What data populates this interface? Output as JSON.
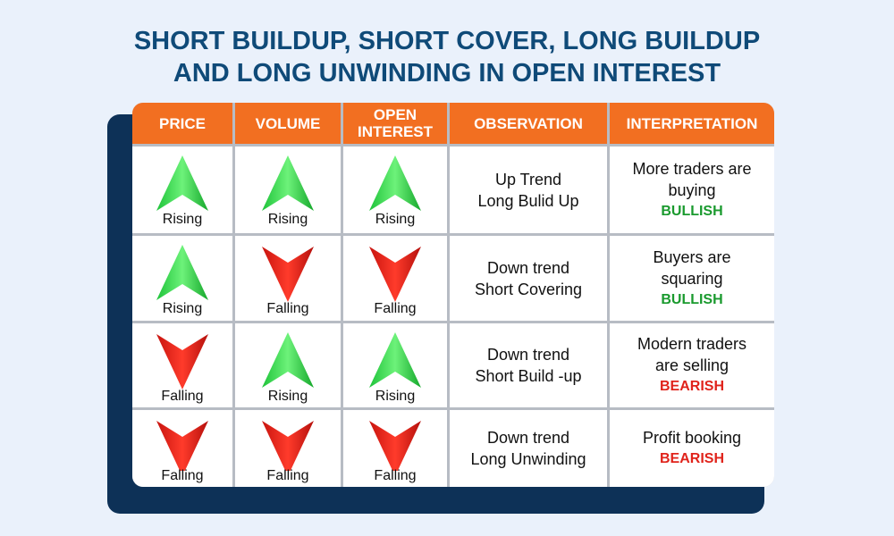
{
  "title": [
    "SHORT BUILDUP, SHORT COVER, LONG BUILDUP",
    "AND LONG UNWINDING IN OPEN INTEREST"
  ],
  "table": {
    "headers": [
      [
        "PRICE"
      ],
      [
        "VOLUME"
      ],
      [
        "OPEN",
        "INTEREST"
      ],
      [
        "OBSERVATION"
      ],
      [
        "INTERPRETATION"
      ]
    ],
    "rows": [
      {
        "price": "Rising",
        "volume": "Rising",
        "open_interest": "Rising",
        "observation": [
          "Up Trend",
          "Long Bulid Up"
        ],
        "interpretation": [
          "More traders are",
          "buying"
        ],
        "signal": "BULLISH"
      },
      {
        "price": "Rising",
        "volume": "Falling",
        "open_interest": "Falling",
        "observation": [
          "Down trend",
          "Short Covering"
        ],
        "interpretation": [
          "Buyers are",
          "squaring"
        ],
        "signal": "BULLISH"
      },
      {
        "price": "Falling",
        "volume": "Rising",
        "open_interest": "Rising",
        "observation": [
          "Down trend",
          "Short Build -up"
        ],
        "interpretation": [
          "Modern traders",
          "are selling"
        ],
        "signal": "BEARISH"
      },
      {
        "price": "Falling",
        "volume": "Falling",
        "open_interest": "Falling",
        "observation": [
          "Down trend",
          "Long Unwinding"
        ],
        "interpretation": [
          "Profit booking"
        ],
        "signal": "BEARISH"
      }
    ]
  }
}
